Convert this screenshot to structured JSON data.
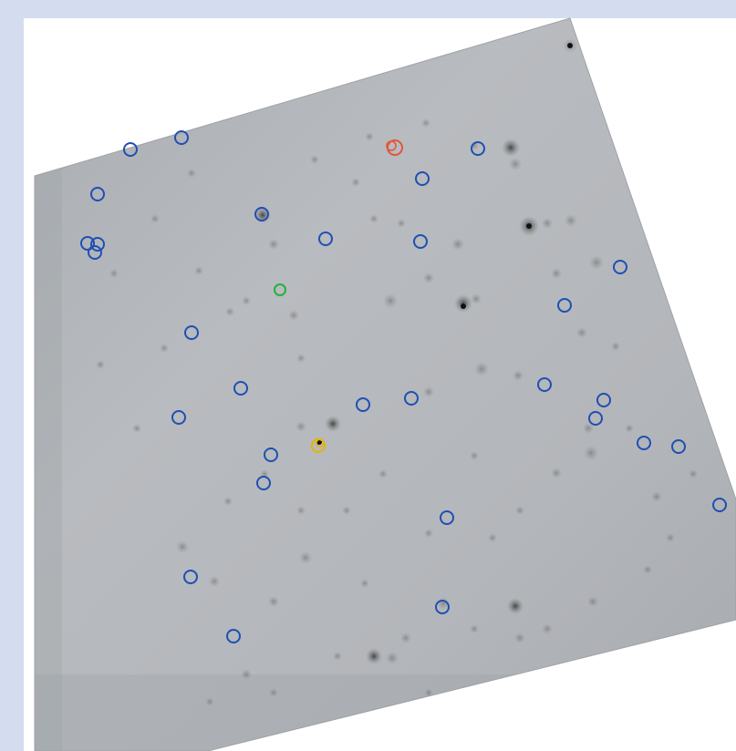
{
  "image": {
    "background_color": "#d3ddef",
    "panel_color": "#ffffff",
    "field_color": "#b6b9bd",
    "source_color": "#2a2a2e"
  },
  "markers": {
    "colors": {
      "catalog": "#1f4fb3",
      "highlight_green": "#22b23a",
      "highlight_red": "#e4553a",
      "highlight_yellow": "#e8b400"
    }
  }
}
